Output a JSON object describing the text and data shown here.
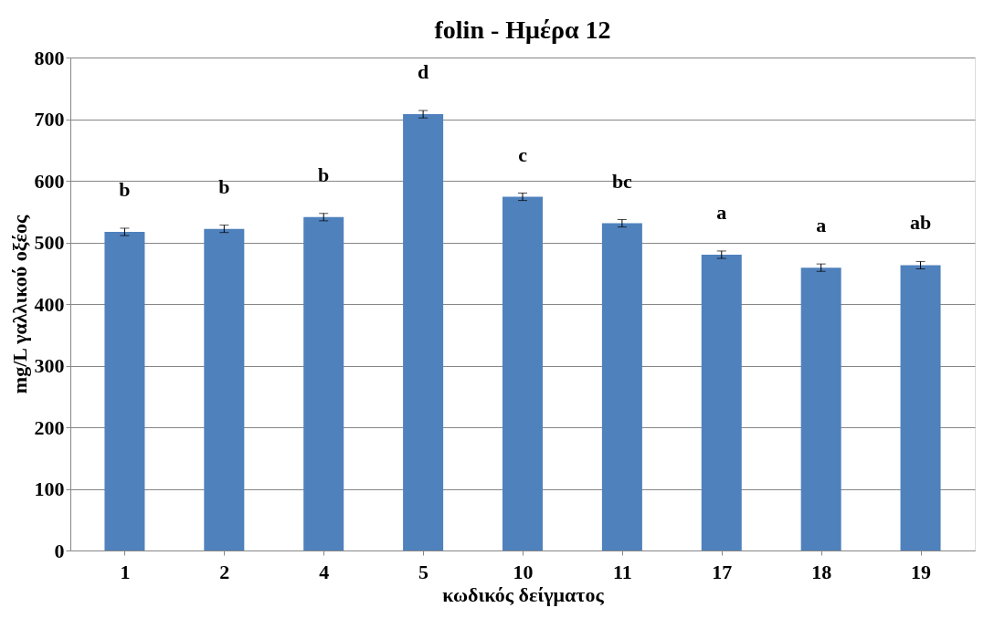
{
  "chart_data": {
    "type": "bar",
    "title": "folin - Ημέρα 12",
    "xlabel": "κωδικός δείγματος",
    "ylabel": "mg/L γαλλικού οξέος",
    "categories": [
      "1",
      "2",
      "4",
      "5",
      "10",
      "11",
      "17",
      "18",
      "19"
    ],
    "values": [
      517,
      522,
      541,
      708,
      574,
      531,
      480,
      459,
      463
    ],
    "errors": [
      6,
      6,
      6,
      6,
      6,
      6,
      6,
      6,
      6
    ],
    "color": "#4f81bd",
    "ylim": [
      0,
      800
    ],
    "yticks": [
      0,
      100,
      200,
      300,
      400,
      500,
      600,
      700,
      800
    ],
    "grid": "y",
    "annotations": [
      "b",
      "b",
      "b",
      "d",
      "c",
      "bc",
      "a",
      "a",
      "ab"
    ]
  }
}
